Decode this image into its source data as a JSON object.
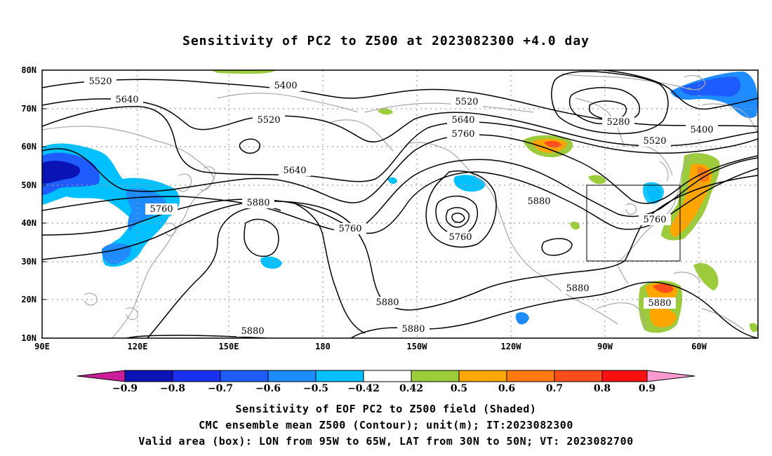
{
  "title": "Sensitivity of PC2 to Z500 at 2023082300 +4.0 day",
  "map": {
    "lat_labels": [
      "80N",
      "70N",
      "60N",
      "50N",
      "40N",
      "30N",
      "20N",
      "10N"
    ],
    "lon_labels": [
      "90E",
      "120E",
      "150E",
      "180",
      "150W",
      "120W",
      "90W",
      "60W"
    ],
    "contour_labels": [
      "5520",
      "5400",
      "5640",
      "5520",
      "5520",
      "5640",
      "5760",
      "5280",
      "5400",
      "5520",
      "5640",
      "5760",
      "5880",
      "5760",
      "5760",
      "5880",
      "5760",
      "5880",
      "5880",
      "5880",
      "5880"
    ],
    "valid_box": {
      "lon_from": "95W",
      "lon_to": "65W",
      "lat_from": "30N",
      "lat_to": "50N"
    },
    "colors": {
      "neg_0.9": "#c81e9a",
      "neg_0.8": "#0a13b4",
      "neg_0.7": "#1a32ef",
      "neg_0.6": "#1e5cff",
      "neg_0.5": "#1e8cff",
      "neg_0.42": "#00c0ff",
      "neutral": "#ffffff",
      "pos_0.42": "#9ccc3c",
      "pos_0.5": "#ffa500",
      "pos_0.6": "#ff7a10",
      "pos_0.7": "#ff4e1c",
      "pos_0.8": "#ff1010",
      "pos_0.9": "#ff9ad0",
      "coast": "#a8a8a8",
      "grid": "#a0a0a0"
    }
  },
  "colorbar": {
    "ticks": [
      "-0.9",
      "-0.8",
      "-0.7",
      "-0.6",
      "-0.5",
      "-0.42",
      "0.42",
      "0.5",
      "0.6",
      "0.7",
      "0.8",
      "0.9"
    ]
  },
  "footer": {
    "line1": "Sensitivity of EOF PC2 to Z500 field (Shaded)",
    "line2": "CMC ensemble mean Z500 (Contour); unit(m); IT:2023082300",
    "line3": "Valid area (box): LON from 95W to 65W, LAT from 30N to 50N; VT: 2023082700"
  }
}
